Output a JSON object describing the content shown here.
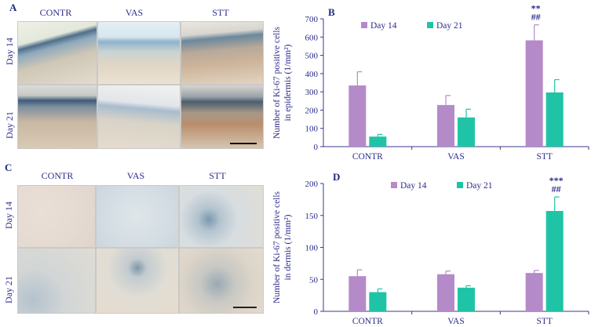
{
  "panel_A": {
    "letter": "A",
    "columns": [
      "CONTR",
      "VAS",
      "STT"
    ],
    "rows": [
      "Day 14",
      "Day 21"
    ]
  },
  "panel_C": {
    "letter": "C",
    "columns": [
      "CONTR",
      "VAS",
      "STT"
    ],
    "rows": [
      "Day 14",
      "Day 21"
    ]
  },
  "chart_data": [
    {
      "panel": "B",
      "type": "bar",
      "categories": [
        "CONTR",
        "VAS",
        "STT"
      ],
      "series": [
        {
          "name": "Day 14",
          "color": "#b58ac8",
          "values": [
            335,
            228,
            582
          ],
          "errors": [
            75,
            52,
            85
          ]
        },
        {
          "name": "Day 21",
          "color": "#1fc4a6",
          "values": [
            55,
            160,
            297
          ],
          "errors": [
            12,
            45,
            70
          ]
        }
      ],
      "ylabel_line1": "Number of Ki-67 positive cells",
      "ylabel_line2": "in epidermis (1/mm²)",
      "ylim": [
        0,
        700
      ],
      "yticks": [
        0,
        100,
        200,
        300,
        400,
        500,
        600,
        700
      ],
      "annotations": [
        {
          "category": "STT",
          "series": 0,
          "lines": [
            "**",
            "##"
          ]
        }
      ],
      "legend": "top-left"
    },
    {
      "panel": "D",
      "type": "bar",
      "categories": [
        "CONTR",
        "VAS",
        "STT"
      ],
      "series": [
        {
          "name": "Day 14",
          "color": "#b58ac8",
          "values": [
            55,
            58,
            60
          ],
          "errors": [
            10,
            5,
            4
          ]
        },
        {
          "name": "Day 21",
          "color": "#1fc4a6",
          "values": [
            30,
            37,
            157
          ],
          "errors": [
            5,
            3,
            22
          ]
        }
      ],
      "ylabel_line1": "Number of Ki-67 positive cells",
      "ylabel_line2": "in dermis (1/mm²)",
      "ylim": [
        0,
        200
      ],
      "yticks": [
        0,
        50,
        100,
        150,
        200
      ],
      "annotations": [
        {
          "category": "STT",
          "series": 1,
          "lines": [
            "***",
            "##"
          ]
        }
      ],
      "legend": "top"
    }
  ]
}
